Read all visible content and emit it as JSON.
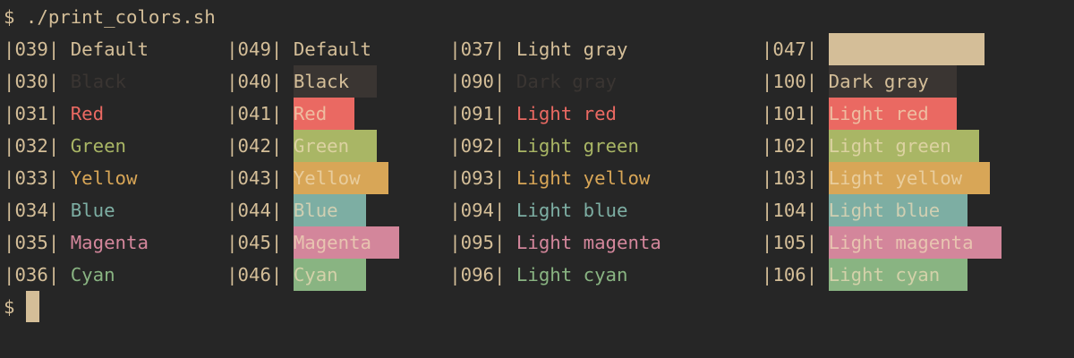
{
  "prompt_command": "$ ./print_colors.sh",
  "rows": [
    [
      {
        "code": "|039|",
        "label": "Default"
      },
      {
        "code": "|049|",
        "label": "Default"
      },
      {
        "code": "|037|",
        "label": "Light gray"
      },
      {
        "code": "|047|"
      }
    ],
    [
      {
        "code": "|030|",
        "label": "Black"
      },
      {
        "code": "|040|",
        "label": "Black"
      },
      {
        "code": "|090|",
        "label": "Dark gray"
      },
      {
        "code": "|100|",
        "label": "Dark gray"
      }
    ],
    [
      {
        "code": "|031|",
        "label": "Red"
      },
      {
        "code": "|041|",
        "label": "Red"
      },
      {
        "code": "|091|",
        "label": "Light red"
      },
      {
        "code": "|101|",
        "label": "Light red"
      }
    ],
    [
      {
        "code": "|032|",
        "label": "Green"
      },
      {
        "code": "|042|",
        "label": "Green"
      },
      {
        "code": "|092|",
        "label": "Light green"
      },
      {
        "code": "|102|",
        "label": "Light green"
      }
    ],
    [
      {
        "code": "|033|",
        "label": "Yellow"
      },
      {
        "code": "|043|",
        "label": "Yellow"
      },
      {
        "code": "|093|",
        "label": "Light yellow"
      },
      {
        "code": "|103|",
        "label": "Light yellow"
      }
    ],
    [
      {
        "code": "|034|",
        "label": "Blue"
      },
      {
        "code": "|044|",
        "label": "Blue"
      },
      {
        "code": "|094|",
        "label": "Light blue"
      },
      {
        "code": "|104|",
        "label": "Light blue"
      }
    ],
    [
      {
        "code": "|035|",
        "label": "Magenta"
      },
      {
        "code": "|045|",
        "label": "Magenta"
      },
      {
        "code": "|095|",
        "label": "Light magenta"
      },
      {
        "code": "|105|",
        "label": "Light magenta"
      }
    ],
    [
      {
        "code": "|036|",
        "label": "Cyan"
      },
      {
        "code": "|046|",
        "label": "Cyan"
      },
      {
        "code": "|096|",
        "label": "Light cyan"
      },
      {
        "code": "|106|",
        "label": "Light cyan"
      }
    ]
  ],
  "final_prompt": "$"
}
